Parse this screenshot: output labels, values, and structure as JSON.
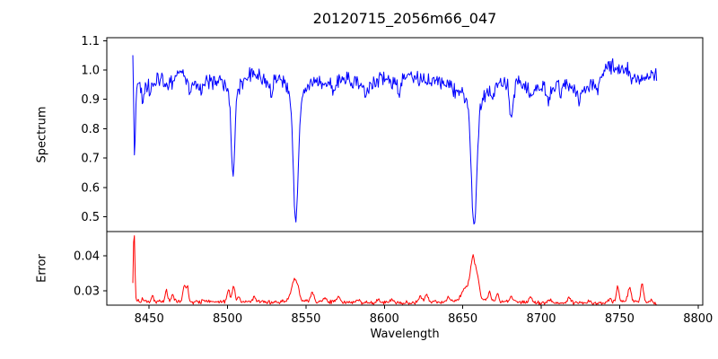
{
  "figure": {
    "title": "20120715_2056m66_047",
    "xlabel": "Wavelength",
    "ylabel_top": "Spectrum",
    "ylabel_bottom": "Error",
    "background_color": "#ffffff",
    "spine_color": "#000000"
  },
  "chart_data": [
    {
      "type": "line",
      "role": "spectrum-panel",
      "title": "20120715_2056m66_047",
      "ylabel": "Spectrum",
      "line_color": "#0000ff",
      "xlim": [
        8423,
        8803
      ],
      "ylim": [
        0.45,
        1.11
      ],
      "y_tick_labels": [
        "1.1",
        "1.0",
        "0.9",
        "0.8",
        "0.7",
        "0.6",
        "0.5"
      ],
      "x_tick_values": [
        8450,
        8500,
        8550,
        8600,
        8650,
        8700,
        8750,
        8800
      ],
      "x_data_range": [
        8439.6,
        8774.0
      ],
      "sample_step": 0.5,
      "noise_amplitude": 0.021,
      "continuum_anchors": [
        [
          8439.6,
          0.96
        ],
        [
          8444,
          0.945
        ],
        [
          8448,
          0.955
        ],
        [
          8456,
          0.965
        ],
        [
          8464,
          0.96
        ],
        [
          8471,
          0.99
        ],
        [
          8477,
          0.95
        ],
        [
          8486,
          0.96
        ],
        [
          8494,
          0.96
        ],
        [
          8500,
          0.965
        ],
        [
          8508,
          0.96
        ],
        [
          8516,
          0.99
        ],
        [
          8524,
          0.96
        ],
        [
          8532,
          0.965
        ],
        [
          8540,
          0.97
        ],
        [
          8549,
          0.96
        ],
        [
          8556,
          0.955
        ],
        [
          8562,
          0.95
        ],
        [
          8570,
          0.96
        ],
        [
          8576,
          0.97
        ],
        [
          8582,
          0.955
        ],
        [
          8592,
          0.95
        ],
        [
          8600,
          0.975
        ],
        [
          8606,
          0.95
        ],
        [
          8615,
          0.985
        ],
        [
          8622,
          0.97
        ],
        [
          8630,
          0.97
        ],
        [
          8638,
          0.95
        ],
        [
          8645,
          0.935
        ],
        [
          8652,
          0.94
        ],
        [
          8660,
          0.935
        ],
        [
          8666,
          0.94
        ],
        [
          8674,
          0.955
        ],
        [
          8680,
          0.955
        ],
        [
          8688,
          0.95
        ],
        [
          8694,
          0.945
        ],
        [
          8700,
          0.935
        ],
        [
          8708,
          0.94
        ],
        [
          8716,
          0.95
        ],
        [
          8722,
          0.93
        ],
        [
          8730,
          0.94
        ],
        [
          8736,
          0.96
        ],
        [
          8742,
          1.005
        ],
        [
          8746,
          1.01
        ],
        [
          8750,
          1.0
        ],
        [
          8754,
          1.005
        ],
        [
          8758,
          0.975
        ],
        [
          8764,
          0.97
        ],
        [
          8770,
          0.98
        ],
        [
          8774,
          0.975
        ]
      ],
      "absorption_format": "[center_wavelength, depth_fraction, sigma_angstrom]",
      "absorption_features": [
        [
          8440.7,
          0.3,
          0.5
        ],
        [
          8446,
          0.05,
          0.8
        ],
        [
          8450.5,
          0.045,
          0.6
        ],
        [
          8476.3,
          0.05,
          0.8
        ],
        [
          8483,
          0.04,
          0.7
        ],
        [
          8503.5,
          0.29,
          1.1
        ],
        [
          8503.5,
          0.05,
          3.0
        ],
        [
          8528,
          0.045,
          0.8
        ],
        [
          8543.5,
          0.44,
          1.5
        ],
        [
          8543.5,
          0.06,
          4.5
        ],
        [
          8567.5,
          0.04,
          0.8
        ],
        [
          8588.5,
          0.05,
          0.9
        ],
        [
          8609.7,
          0.06,
          0.9
        ],
        [
          8657.2,
          0.44,
          1.7
        ],
        [
          8657.2,
          0.06,
          5.0
        ],
        [
          8668.8,
          0.05,
          0.8
        ],
        [
          8681,
          0.12,
          1.2
        ],
        [
          8693,
          0.045,
          0.8
        ],
        [
          8704.5,
          0.05,
          0.8
        ],
        [
          8712.5,
          0.045,
          0.7
        ],
        [
          8724.5,
          0.055,
          0.8
        ],
        [
          8736,
          0.04,
          0.7
        ]
      ],
      "emission_spikes": [
        [
          8439.7,
          0.1,
          0.5
        ]
      ]
    },
    {
      "type": "line",
      "role": "error-panel",
      "ylabel": "Error",
      "xlabel": "Wavelength",
      "line_color": "#ff0000",
      "xlim": [
        8423,
        8803
      ],
      "ylim": [
        0.0259,
        0.0469
      ],
      "y_tick_labels": [
        "0.04",
        "0.03"
      ],
      "x_tick_values": [
        8450,
        8500,
        8550,
        8600,
        8650,
        8700,
        8750,
        8800
      ],
      "x_data_range": [
        8439.6,
        8774.0
      ],
      "sample_step": 0.5,
      "noise_amplitude": 0.00045,
      "baseline_anchors": [
        [
          8439.6,
          0.0272
        ],
        [
          8450,
          0.0268
        ],
        [
          8455,
          0.027
        ],
        [
          8460,
          0.0272
        ],
        [
          8470,
          0.0269
        ],
        [
          8480,
          0.0267
        ],
        [
          8490,
          0.0268
        ],
        [
          8500,
          0.027
        ],
        [
          8510,
          0.0268
        ],
        [
          8520,
          0.0269
        ],
        [
          8530,
          0.0267
        ],
        [
          8540,
          0.0272
        ],
        [
          8550,
          0.0271
        ],
        [
          8560,
          0.0268
        ],
        [
          8570,
          0.0268
        ],
        [
          8580,
          0.0266
        ],
        [
          8590,
          0.0266
        ],
        [
          8600,
          0.0266
        ],
        [
          8610,
          0.0266
        ],
        [
          8620,
          0.0267
        ],
        [
          8630,
          0.0268
        ],
        [
          8640,
          0.0267
        ],
        [
          8650,
          0.0272
        ],
        [
          8660,
          0.0275
        ],
        [
          8665,
          0.0272
        ],
        [
          8670,
          0.027
        ],
        [
          8680,
          0.0268
        ],
        [
          8690,
          0.0267
        ],
        [
          8700,
          0.0265
        ],
        [
          8710,
          0.0265
        ],
        [
          8720,
          0.0266
        ],
        [
          8730,
          0.0264
        ],
        [
          8740,
          0.0265
        ],
        [
          8750,
          0.0268
        ],
        [
          8760,
          0.0268
        ],
        [
          8770,
          0.0264
        ],
        [
          8774,
          0.0263
        ]
      ],
      "bump_format": "[center_wavelength, height, sigma_angstrom]",
      "bump_features": [
        [
          8440.4,
          0.02,
          0.5
        ],
        [
          8446,
          0.0008,
          0.8
        ],
        [
          8452,
          0.0014,
          0.7
        ],
        [
          8461,
          0.0028,
          0.7
        ],
        [
          8465,
          0.002,
          0.7
        ],
        [
          8472.5,
          0.0048,
          0.9
        ],
        [
          8474.5,
          0.004,
          0.6
        ],
        [
          8485,
          0.0008,
          1.0
        ],
        [
          8500.5,
          0.0032,
          0.8
        ],
        [
          8503.8,
          0.0044,
          0.9
        ],
        [
          8507,
          0.0018,
          0.7
        ],
        [
          8517,
          0.0012,
          1.0
        ],
        [
          8542.5,
          0.0058,
          1.8
        ],
        [
          8545,
          0.002,
          1.0
        ],
        [
          8554,
          0.0026,
          1.0
        ],
        [
          8562,
          0.0012,
          1.2
        ],
        [
          8571,
          0.0014,
          1.0
        ],
        [
          8583,
          0.0008,
          1.2
        ],
        [
          8596,
          0.001,
          1.0
        ],
        [
          8605,
          0.0008,
          1.2
        ],
        [
          8623,
          0.0016,
          1.2
        ],
        [
          8627,
          0.0018,
          1.0
        ],
        [
          8641,
          0.0014,
          1.0
        ],
        [
          8652,
          0.0035,
          2.5
        ],
        [
          8656.5,
          0.0115,
          1.6
        ],
        [
          8659.5,
          0.005,
          1.2
        ],
        [
          8667,
          0.0028,
          0.8
        ],
        [
          8672,
          0.0022,
          0.9
        ],
        [
          8681,
          0.0014,
          1.2
        ],
        [
          8693,
          0.0016,
          1.0
        ],
        [
          8705,
          0.001,
          1.2
        ],
        [
          8718,
          0.0016,
          1.0
        ],
        [
          8731,
          0.0008,
          1.2
        ],
        [
          8744,
          0.0012,
          1.0
        ],
        [
          8748.8,
          0.0042,
          0.9
        ],
        [
          8756.3,
          0.004,
          1.1
        ],
        [
          8764.3,
          0.0052,
          0.9
        ],
        [
          8770,
          0.001,
          1.0
        ]
      ]
    }
  ]
}
